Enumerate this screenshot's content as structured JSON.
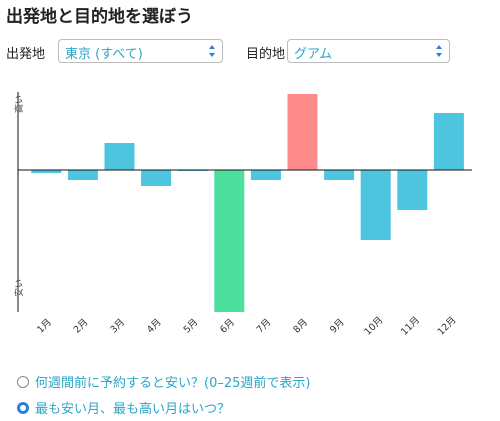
{
  "page": {
    "title": "出発地と目的地を選ぼう"
  },
  "origin": {
    "label": "出発地",
    "value": "東京 (すべて)"
  },
  "destination": {
    "label": "目的地",
    "value": "グアム"
  },
  "chart_data": {
    "type": "bar",
    "categories": [
      "1月",
      "2月",
      "3月",
      "4月",
      "5月",
      "6月",
      "7月",
      "8月",
      "9月",
      "10月",
      "11月",
      "12月"
    ],
    "values": [
      -3,
      -10,
      27,
      -16,
      -1,
      -142,
      -10,
      76,
      -10,
      -70,
      -40,
      57
    ],
    "ylim": [
      -142,
      76
    ],
    "y_end_labels": {
      "top": "高い",
      "bottom": "安い"
    },
    "colors": {
      "default": "#4ec5de",
      "max": "#ff8a8a",
      "min": "#4ddf9e"
    },
    "baseline": 0,
    "grid": false
  },
  "options": [
    {
      "label": "何週間前に予約すると安い？(0–25週前で表示)",
      "selected": false
    },
    {
      "label": "最も安い月、最も高い月はいつ？",
      "selected": true
    }
  ]
}
